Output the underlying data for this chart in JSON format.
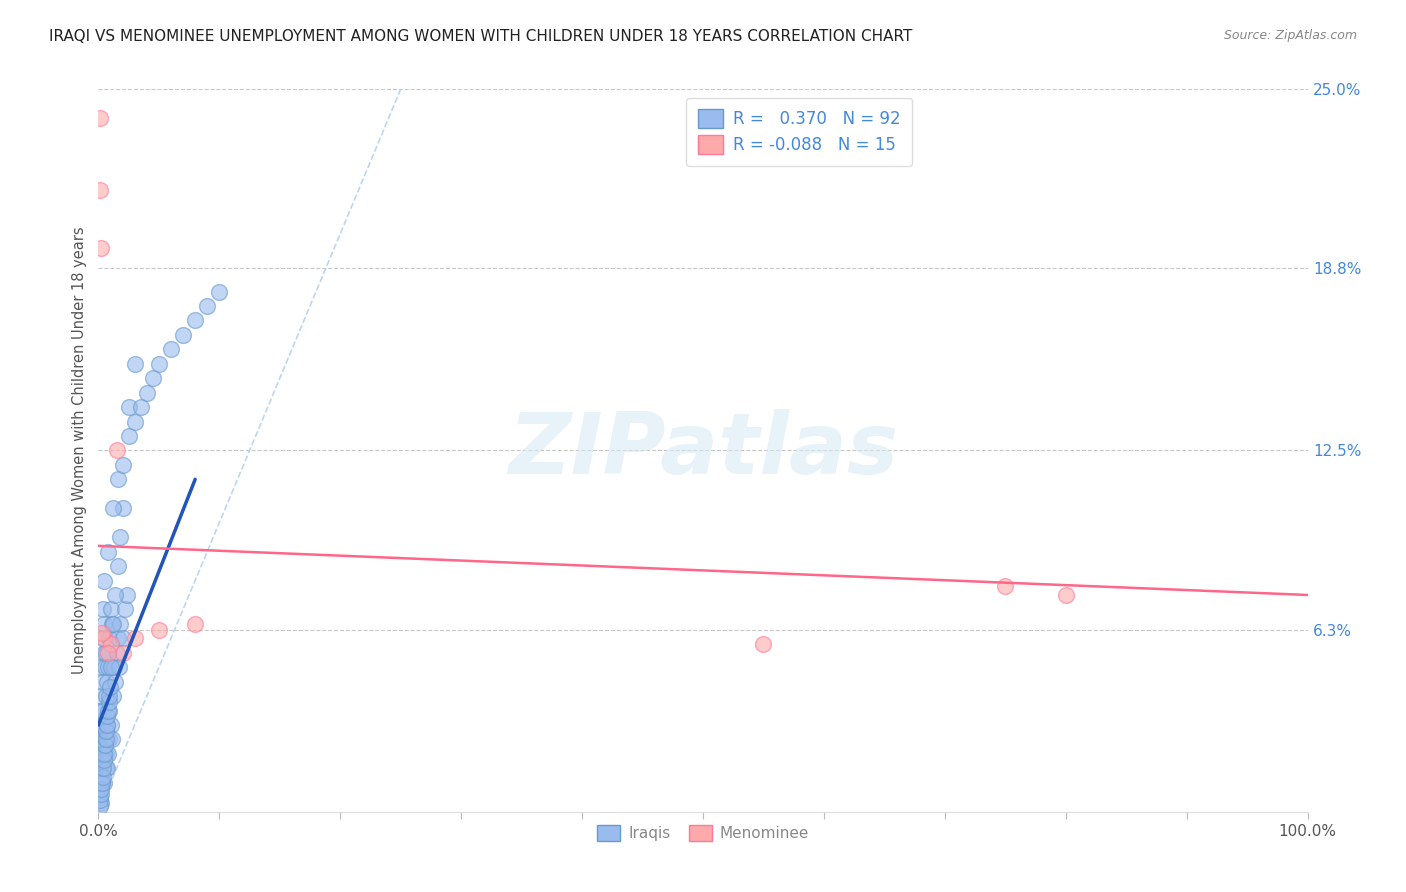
{
  "title": "IRAQI VS MENOMINEE UNEMPLOYMENT AMONG WOMEN WITH CHILDREN UNDER 18 YEARS CORRELATION CHART",
  "source": "Source: ZipAtlas.com",
  "ylabel": "Unemployment Among Women with Children Under 18 years",
  "xlim": [
    0,
    100
  ],
  "ylim": [
    0,
    25
  ],
  "iraqi_color": "#99BBEE",
  "menominee_color": "#FFAAAA",
  "iraqi_edge_color": "#6699CC",
  "menominee_edge_color": "#FF7799",
  "iraqi_line_color": "#2255BB",
  "menominee_line_color": "#FF6688",
  "iraqi_R": 0.37,
  "iraqi_N": 92,
  "menominee_R": -0.088,
  "menominee_N": 15,
  "watermark_text": "ZIPatlas",
  "iraqi_scatter_x": [
    0.1,
    0.1,
    0.15,
    0.15,
    0.2,
    0.2,
    0.2,
    0.25,
    0.25,
    0.3,
    0.3,
    0.3,
    0.35,
    0.35,
    0.4,
    0.4,
    0.4,
    0.45,
    0.45,
    0.5,
    0.5,
    0.5,
    0.55,
    0.55,
    0.6,
    0.6,
    0.65,
    0.65,
    0.7,
    0.7,
    0.75,
    0.8,
    0.8,
    0.85,
    0.9,
    0.9,
    1.0,
    1.0,
    1.1,
    1.1,
    1.2,
    1.3,
    1.4,
    1.5,
    1.6,
    1.7,
    1.8,
    2.0,
    2.2,
    2.4,
    0.1,
    0.15,
    0.2,
    0.25,
    0.3,
    0.35,
    0.4,
    0.45,
    0.5,
    0.55,
    0.6,
    0.65,
    0.7,
    0.75,
    0.8,
    0.85,
    0.9,
    0.95,
    1.0,
    1.2,
    1.4,
    1.6,
    1.8,
    2.0,
    2.5,
    3.0,
    0.5,
    0.8,
    1.2,
    1.6,
    2.0,
    2.5,
    3.0,
    3.5,
    4.0,
    4.5,
    5.0,
    6.0,
    7.0,
    8.0,
    9.0,
    10.0
  ],
  "iraqi_scatter_y": [
    1.0,
    2.5,
    0.5,
    3.5,
    1.5,
    4.0,
    0.3,
    2.0,
    5.0,
    1.0,
    3.0,
    6.0,
    2.5,
    4.5,
    1.5,
    3.5,
    7.0,
    2.0,
    5.5,
    1.0,
    3.0,
    6.5,
    2.5,
    5.0,
    1.5,
    4.0,
    2.0,
    5.5,
    1.5,
    4.5,
    3.0,
    2.0,
    5.0,
    3.5,
    2.5,
    6.0,
    3.0,
    7.0,
    2.5,
    6.5,
    4.0,
    5.0,
    4.5,
    5.5,
    6.0,
    5.0,
    6.5,
    6.0,
    7.0,
    7.5,
    0.2,
    0.4,
    0.6,
    0.8,
    1.0,
    1.2,
    1.5,
    1.8,
    2.0,
    2.3,
    2.5,
    2.8,
    3.0,
    3.3,
    3.5,
    3.8,
    4.0,
    4.3,
    5.0,
    6.5,
    7.5,
    8.5,
    9.5,
    10.5,
    14.0,
    15.5,
    8.0,
    9.0,
    10.5,
    11.5,
    12.0,
    13.0,
    13.5,
    14.0,
    14.5,
    15.0,
    15.5,
    16.0,
    16.5,
    17.0,
    17.5,
    18.0
  ],
  "menominee_scatter_x": [
    0.1,
    0.15,
    0.2,
    0.5,
    1.0,
    2.0,
    3.0,
    5.0,
    8.0,
    55.0,
    75.0,
    80.0,
    0.3,
    0.8,
    1.5
  ],
  "menominee_scatter_y": [
    24.0,
    21.5,
    19.5,
    6.0,
    5.8,
    5.5,
    6.0,
    6.3,
    6.5,
    5.8,
    7.8,
    7.5,
    6.2,
    5.5,
    12.5
  ],
  "iraqi_trendline_x0": 0.0,
  "iraqi_trendline_y0": 3.0,
  "iraqi_trendline_x1": 8.0,
  "iraqi_trendline_y1": 11.5,
  "menominee_trendline_x0": 0.0,
  "menominee_trendline_y0": 9.2,
  "menominee_trendline_x1": 100.0,
  "menominee_trendline_y1": 7.5,
  "diag_x0": 0,
  "diag_y0": 0,
  "diag_x1": 25,
  "diag_y1": 25,
  "yticks_right": [
    6.3,
    12.5,
    18.8,
    25.0
  ],
  "ytick_labels_right": [
    "6.3%",
    "12.5%",
    "18.8%",
    "25.0%"
  ],
  "xticks": [
    0,
    10,
    20,
    30,
    40,
    50,
    60,
    70,
    80,
    90,
    100
  ],
  "xtick_labels": [
    "0.0%",
    "",
    "",
    "",
    "",
    "",
    "",
    "",
    "",
    "",
    "100.0%"
  ],
  "background_color": "#ffffff",
  "grid_color": "#bbbbbb",
  "title_color": "#222222",
  "right_yaxis_color": "#4488DD",
  "marker_size": 130
}
